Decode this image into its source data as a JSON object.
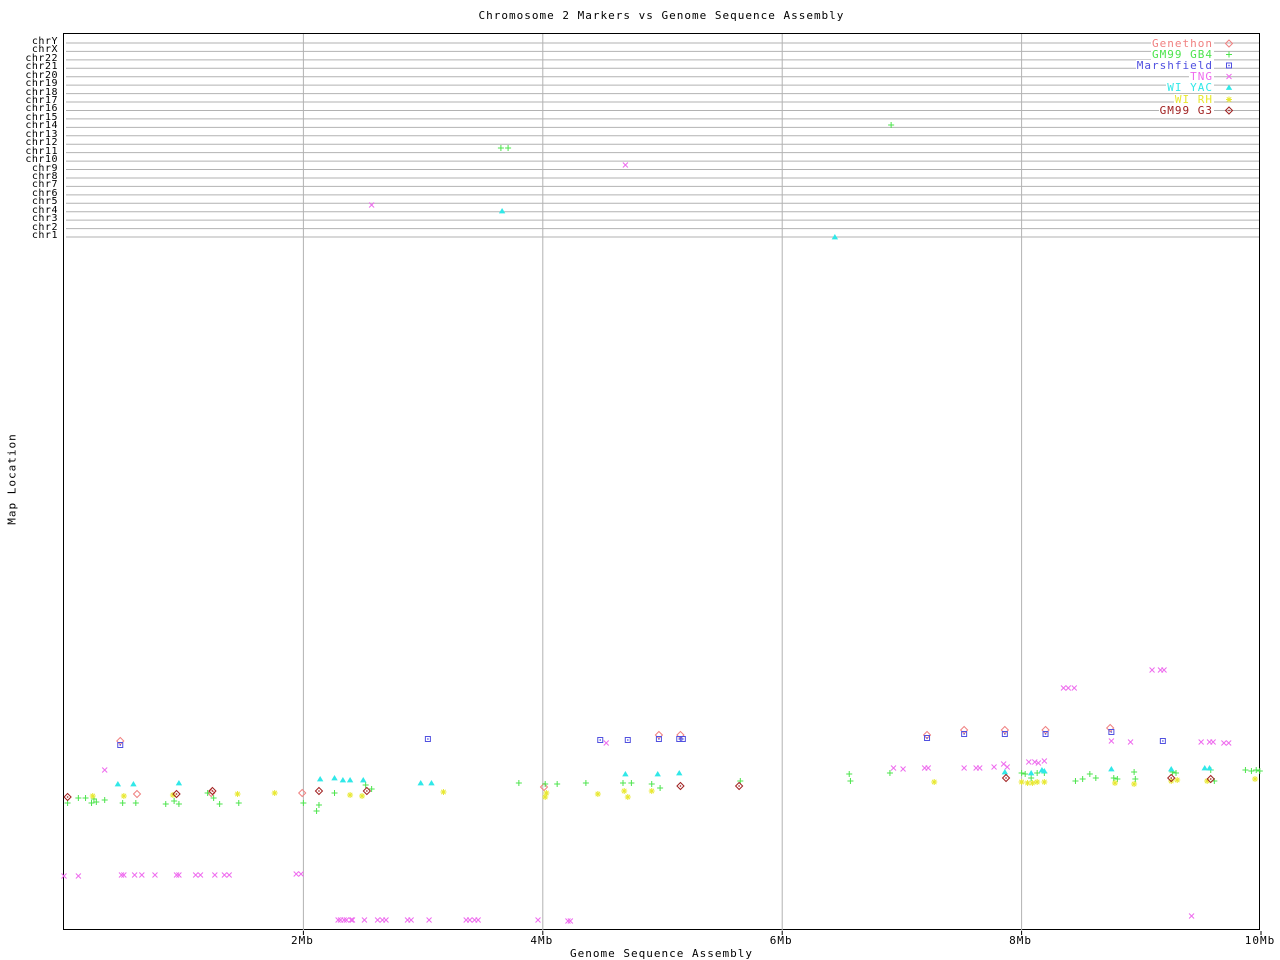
{
  "chart_data": {
    "type": "scatter",
    "title": "Chromosome 2 Markers vs Genome Sequence Assembly",
    "xlabel": "Genome Sequence Assembly",
    "ylabel": "Map Location",
    "background": "#ffffff",
    "grid_color": "#b2b2b2",
    "border_color": "#000000",
    "text_color": "#000000",
    "grid": true,
    "legend_position": "top-right",
    "x_unit": "Mb",
    "x_range": [
      0,
      10
    ],
    "x_ticks": [
      {
        "mb": 2,
        "label": "2Mb",
        "grid": true
      },
      {
        "mb": 4,
        "label": "4Mb",
        "grid": true
      },
      {
        "mb": 6,
        "label": "6Mb",
        "grid": true
      },
      {
        "mb": 8,
        "label": "8Mb",
        "grid": true
      },
      {
        "mb": 10,
        "label": "10Mb",
        "grid": false
      }
    ],
    "y_categories": [
      "chrY",
      "chrX",
      "chr22",
      "chr21",
      "chr20",
      "chr19",
      "chr18",
      "chr17",
      "chr16",
      "chr15",
      "chr14",
      "chr13",
      "chr12",
      "chr11",
      "chr10",
      "chr9",
      "chr8",
      "chr7",
      "chr6",
      "chr5",
      "chr4",
      "chr3",
      "chr2",
      "chr1"
    ],
    "y_note": "Top band of horizontal gridlines marks chromosome rows (chrY down to chr1). Points are [x in Mb, y in screen pixels] since the lower map locations carry no printed scale.",
    "series": [
      {
        "name": "Genethon",
        "marker": "diamond-open",
        "color": "#f08080",
        "points": [
          [
            0.47,
            740
          ],
          [
            0.61,
            793
          ],
          [
            1.23,
            792
          ],
          [
            1.99,
            792
          ],
          [
            4.01,
            786
          ],
          [
            4.97,
            734
          ],
          [
            5.15,
            734
          ],
          [
            7.21,
            734
          ],
          [
            7.52,
            729
          ],
          [
            7.86,
            729
          ],
          [
            8.2,
            729
          ],
          [
            8.74,
            727
          ]
        ]
      },
      {
        "name": "GM99 GB4",
        "marker": "plus",
        "color": "#4ce44c",
        "points": [
          [
            3.65,
            147
          ],
          [
            3.71,
            147
          ],
          [
            6.91,
            124
          ],
          [
            0.03,
            802
          ],
          [
            0.12,
            797
          ],
          [
            0.18,
            797
          ],
          [
            0.23,
            802
          ],
          [
            0.25,
            798
          ],
          [
            0.27,
            801
          ],
          [
            0.34,
            799
          ],
          [
            0.49,
            802
          ],
          [
            0.6,
            802
          ],
          [
            0.85,
            803
          ],
          [
            0.92,
            800
          ],
          [
            0.96,
            803
          ],
          [
            1.2,
            792
          ],
          [
            1.25,
            797
          ],
          [
            1.3,
            803
          ],
          [
            1.46,
            802
          ],
          [
            2.0,
            802
          ],
          [
            2.11,
            810
          ],
          [
            2.13,
            804
          ],
          [
            2.26,
            792
          ],
          [
            2.52,
            784
          ],
          [
            2.57,
            788
          ],
          [
            3.8,
            782
          ],
          [
            4.02,
            783
          ],
          [
            4.12,
            783
          ],
          [
            4.36,
            782
          ],
          [
            4.67,
            782
          ],
          [
            4.74,
            782
          ],
          [
            4.91,
            783
          ],
          [
            4.98,
            787
          ],
          [
            5.65,
            780
          ],
          [
            6.56,
            773
          ],
          [
            6.57,
            780
          ],
          [
            6.9,
            772
          ],
          [
            8.0,
            772
          ],
          [
            8.03,
            773
          ],
          [
            8.08,
            777
          ],
          [
            8.13,
            772
          ],
          [
            8.19,
            772
          ],
          [
            8.45,
            780
          ],
          [
            8.51,
            778
          ],
          [
            8.57,
            773
          ],
          [
            8.62,
            777
          ],
          [
            8.77,
            777
          ],
          [
            8.8,
            778
          ],
          [
            8.94,
            771
          ],
          [
            8.95,
            778
          ],
          [
            9.26,
            771
          ],
          [
            9.29,
            772
          ],
          [
            9.58,
            769
          ],
          [
            9.61,
            780
          ],
          [
            9.87,
            769
          ],
          [
            9.92,
            770
          ],
          [
            9.96,
            769
          ],
          [
            9.99,
            770
          ]
        ]
      },
      {
        "name": "Marshfield",
        "marker": "square-dot",
        "color": "#5050e0",
        "points": [
          [
            0.47,
            744
          ],
          [
            3.04,
            738
          ],
          [
            4.48,
            739
          ],
          [
            4.71,
            739
          ],
          [
            4.97,
            738
          ],
          [
            5.14,
            738
          ],
          [
            5.17,
            738
          ],
          [
            7.21,
            737
          ],
          [
            7.52,
            733
          ],
          [
            7.86,
            733
          ],
          [
            8.2,
            733
          ],
          [
            8.75,
            731
          ],
          [
            9.18,
            740
          ]
        ]
      },
      {
        "name": "TNG",
        "marker": "cross",
        "color": "#ee6aee",
        "points": [
          [
            2.57,
            204
          ],
          [
            4.69,
            164
          ],
          [
            0.34,
            769
          ],
          [
            4.53,
            742
          ],
          [
            6.93,
            767
          ],
          [
            7.01,
            768
          ],
          [
            7.19,
            767
          ],
          [
            7.22,
            767
          ],
          [
            7.52,
            767
          ],
          [
            7.62,
            767
          ],
          [
            7.65,
            767
          ],
          [
            7.77,
            766
          ],
          [
            7.85,
            763
          ],
          [
            7.88,
            766
          ],
          [
            8.06,
            761
          ],
          [
            8.11,
            761
          ],
          [
            8.14,
            762
          ],
          [
            8.19,
            760
          ],
          [
            8.35,
            687
          ],
          [
            8.39,
            687
          ],
          [
            8.44,
            687
          ],
          [
            8.75,
            740
          ],
          [
            8.91,
            741
          ],
          [
            9.09,
            669
          ],
          [
            9.16,
            669
          ],
          [
            9.19,
            669
          ],
          [
            9.5,
            741
          ],
          [
            9.57,
            741
          ],
          [
            9.6,
            741
          ],
          [
            9.69,
            742
          ],
          [
            9.73,
            742
          ],
          [
            0.0,
            875
          ],
          [
            0.12,
            875
          ],
          [
            0.48,
            874
          ],
          [
            0.5,
            874
          ],
          [
            0.59,
            874
          ],
          [
            0.65,
            874
          ],
          [
            0.76,
            874
          ],
          [
            0.94,
            874
          ],
          [
            0.96,
            874
          ],
          [
            1.1,
            874
          ],
          [
            1.14,
            874
          ],
          [
            1.26,
            874
          ],
          [
            1.34,
            874
          ],
          [
            1.38,
            874
          ],
          [
            1.94,
            873
          ],
          [
            1.98,
            873
          ],
          [
            2.29,
            919
          ],
          [
            2.31,
            919
          ],
          [
            2.34,
            919
          ],
          [
            2.36,
            919
          ],
          [
            2.4,
            919
          ],
          [
            2.41,
            919
          ],
          [
            2.51,
            919
          ],
          [
            2.62,
            919
          ],
          [
            2.66,
            919
          ],
          [
            2.69,
            919
          ],
          [
            2.87,
            919
          ],
          [
            2.9,
            919
          ],
          [
            3.05,
            919
          ],
          [
            3.36,
            919
          ],
          [
            3.39,
            919
          ],
          [
            3.43,
            919
          ],
          [
            3.46,
            919
          ],
          [
            3.96,
            919
          ],
          [
            4.21,
            920
          ],
          [
            4.23,
            920
          ],
          [
            9.42,
            915
          ]
        ]
      },
      {
        "name": "WI YAC",
        "marker": "triangle",
        "color": "#30e8e8",
        "points": [
          [
            3.66,
            210
          ],
          [
            6.44,
            236
          ],
          [
            0.45,
            783
          ],
          [
            0.58,
            783
          ],
          [
            0.96,
            782
          ],
          [
            2.14,
            778
          ],
          [
            2.26,
            777
          ],
          [
            2.33,
            779
          ],
          [
            2.39,
            779
          ],
          [
            2.5,
            779
          ],
          [
            2.98,
            782
          ],
          [
            3.07,
            782
          ],
          [
            4.69,
            773
          ],
          [
            4.96,
            773
          ],
          [
            5.14,
            772
          ],
          [
            7.86,
            771
          ],
          [
            8.08,
            772
          ],
          [
            8.17,
            769
          ],
          [
            8.19,
            770
          ],
          [
            8.75,
            768
          ],
          [
            9.25,
            768
          ],
          [
            9.53,
            767
          ],
          [
            9.57,
            767
          ]
        ]
      },
      {
        "name": "WI RH",
        "marker": "star",
        "color": "#e8e830",
        "points": [
          [
            0.24,
            795
          ],
          [
            0.5,
            795
          ],
          [
            0.91,
            794
          ],
          [
            1.45,
            793
          ],
          [
            1.76,
            792
          ],
          [
            2.39,
            794
          ],
          [
            2.49,
            795
          ],
          [
            3.17,
            791
          ],
          [
            4.02,
            796
          ],
          [
            4.03,
            792
          ],
          [
            4.46,
            793
          ],
          [
            4.68,
            790
          ],
          [
            4.71,
            796
          ],
          [
            4.91,
            790
          ],
          [
            7.27,
            781
          ],
          [
            8.0,
            781
          ],
          [
            8.05,
            782
          ],
          [
            8.09,
            782
          ],
          [
            8.13,
            781
          ],
          [
            8.19,
            781
          ],
          [
            8.78,
            782
          ],
          [
            8.94,
            783
          ],
          [
            9.25,
            780
          ],
          [
            9.3,
            779
          ],
          [
            9.55,
            780
          ],
          [
            9.95,
            778
          ]
        ]
      },
      {
        "name": "GM99 G3",
        "marker": "diamond-dot",
        "color": "#a02020",
        "points": [
          [
            0.03,
            796
          ],
          [
            0.94,
            793
          ],
          [
            1.24,
            790
          ],
          [
            2.13,
            790
          ],
          [
            2.53,
            790
          ],
          [
            5.15,
            785
          ],
          [
            5.64,
            785
          ],
          [
            7.87,
            777
          ],
          [
            9.25,
            777
          ],
          [
            9.58,
            778
          ]
        ]
      }
    ]
  }
}
